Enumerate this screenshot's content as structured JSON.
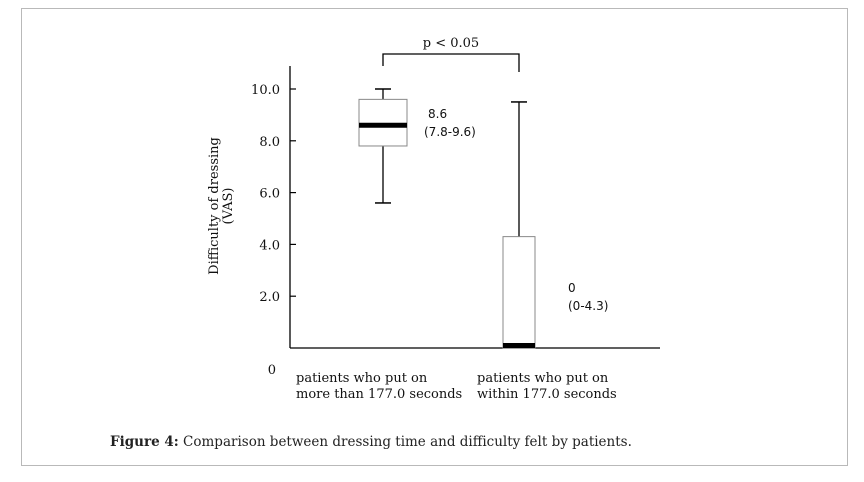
{
  "figure": {
    "caption_label": "Figure 4:",
    "caption_text": " Comparison between dressing time and difficulty felt by patients."
  },
  "chart_data": {
    "type": "boxplot",
    "ylabel": "Difficulty of dressing (VAS)",
    "ylabel_lines": [
      "Difficulty of dressing",
      "(VAS)"
    ],
    "ylim": [
      0,
      10.5
    ],
    "yticks": [
      {
        "value": 10.0,
        "label": "10.0"
      },
      {
        "value": 8.0,
        "label": "8.0"
      },
      {
        "value": 6.0,
        "label": "6.0"
      },
      {
        "value": 4.0,
        "label": "4.0"
      },
      {
        "value": 2.0,
        "label": "2.0"
      }
    ],
    "origin_label": "0",
    "groups": [
      {
        "label_lines": [
          "patients who put on",
          "more than 177.0 seconds"
        ],
        "whisker_low": 5.6,
        "q1": 7.8,
        "median": 8.6,
        "q3": 9.6,
        "whisker_high": 10.0,
        "annotation_value": "8.6",
        "annotation_range": "(7.8-9.6)"
      },
      {
        "label_lines": [
          "patients who put on",
          "within 177.0 seconds"
        ],
        "whisker_low": 0,
        "q1": 0,
        "median": 0,
        "q3": 4.3,
        "whisker_high": 9.5,
        "annotation_value": "0",
        "annotation_range": "(0-4.3)"
      }
    ],
    "significance": "p < 0.05"
  }
}
